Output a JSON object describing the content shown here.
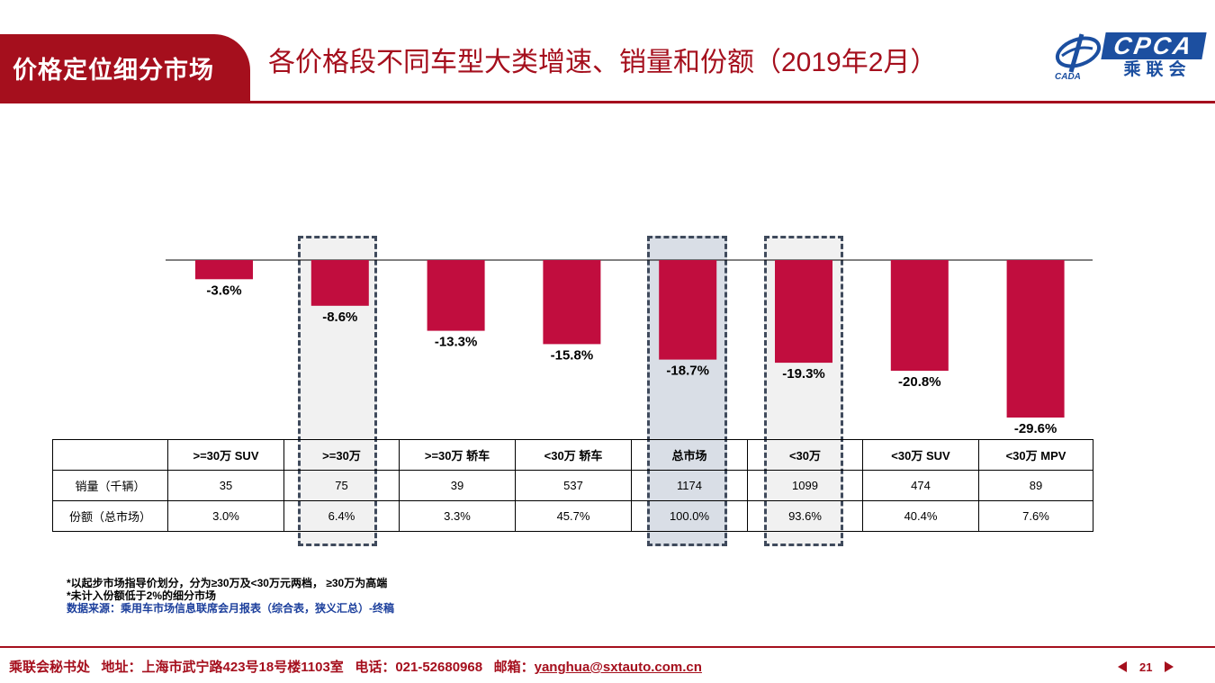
{
  "header": {
    "section_tab": "价格定位细分市场",
    "title": "各价格段不同车型大类增速、销量和份额（2019年2月）",
    "logo_text": "CPCA",
    "logo_cn": "乘联会",
    "logo_mark_text": "CADA"
  },
  "colors": {
    "accent": "#a50f1d",
    "bar": "#c10d3e",
    "brand_blue": "#1c4fa0"
  },
  "chart_data": {
    "type": "bar",
    "categories": [
      ">=30万 SUV",
      ">=30万",
      ">=30万 轿车",
      "<30万 轿车",
      "总市场",
      "<30万",
      "<30万 SUV",
      "<30万 MPV"
    ],
    "values": [
      -3.6,
      -8.6,
      -13.3,
      -15.8,
      -18.7,
      -19.3,
      -20.8,
      -29.6
    ],
    "data_labels": [
      "-3.6%",
      "-8.6%",
      "-13.3%",
      "-15.8%",
      "-18.7%",
      "-19.3%",
      "-20.8%",
      "-29.6%"
    ],
    "unit": "%",
    "ylim": [
      -30,
      0
    ],
    "highlighted_categories": [
      ">=30万",
      "总市场",
      "<30万"
    ]
  },
  "table": {
    "header": [
      "",
      ">=30万 SUV",
      ">=30万",
      ">=30万 轿车",
      "<30万 轿车",
      "总市场",
      "<30万",
      "<30万 SUV",
      "<30万 MPV"
    ],
    "rows": [
      [
        "销量（千辆）",
        "35",
        "75",
        "39",
        "537",
        "1174",
        "1099",
        "474",
        "89"
      ],
      [
        "份额（总市场）",
        "3.0%",
        "6.4%",
        "3.3%",
        "45.7%",
        "100.0%",
        "93.6%",
        "40.4%",
        "7.6%"
      ]
    ]
  },
  "notes": {
    "line1": "*以起步市场指导价划分，分为≥30万及<30万元两档， ≥30万为高端",
    "line2": "*未计入份额低于2%的细分市场",
    "source": "数据来源：乘用车市场信息联席会月报表（综合表，狭义汇总）-终稿"
  },
  "footer": {
    "org": "乘联会秘书处",
    "address": "地址：上海市武宁路423号18号楼1103室",
    "phone": "电话：021-52680968",
    "email_label": "邮箱：",
    "email": "yanghua@sxtauto.com.cn",
    "page_number": "21"
  }
}
